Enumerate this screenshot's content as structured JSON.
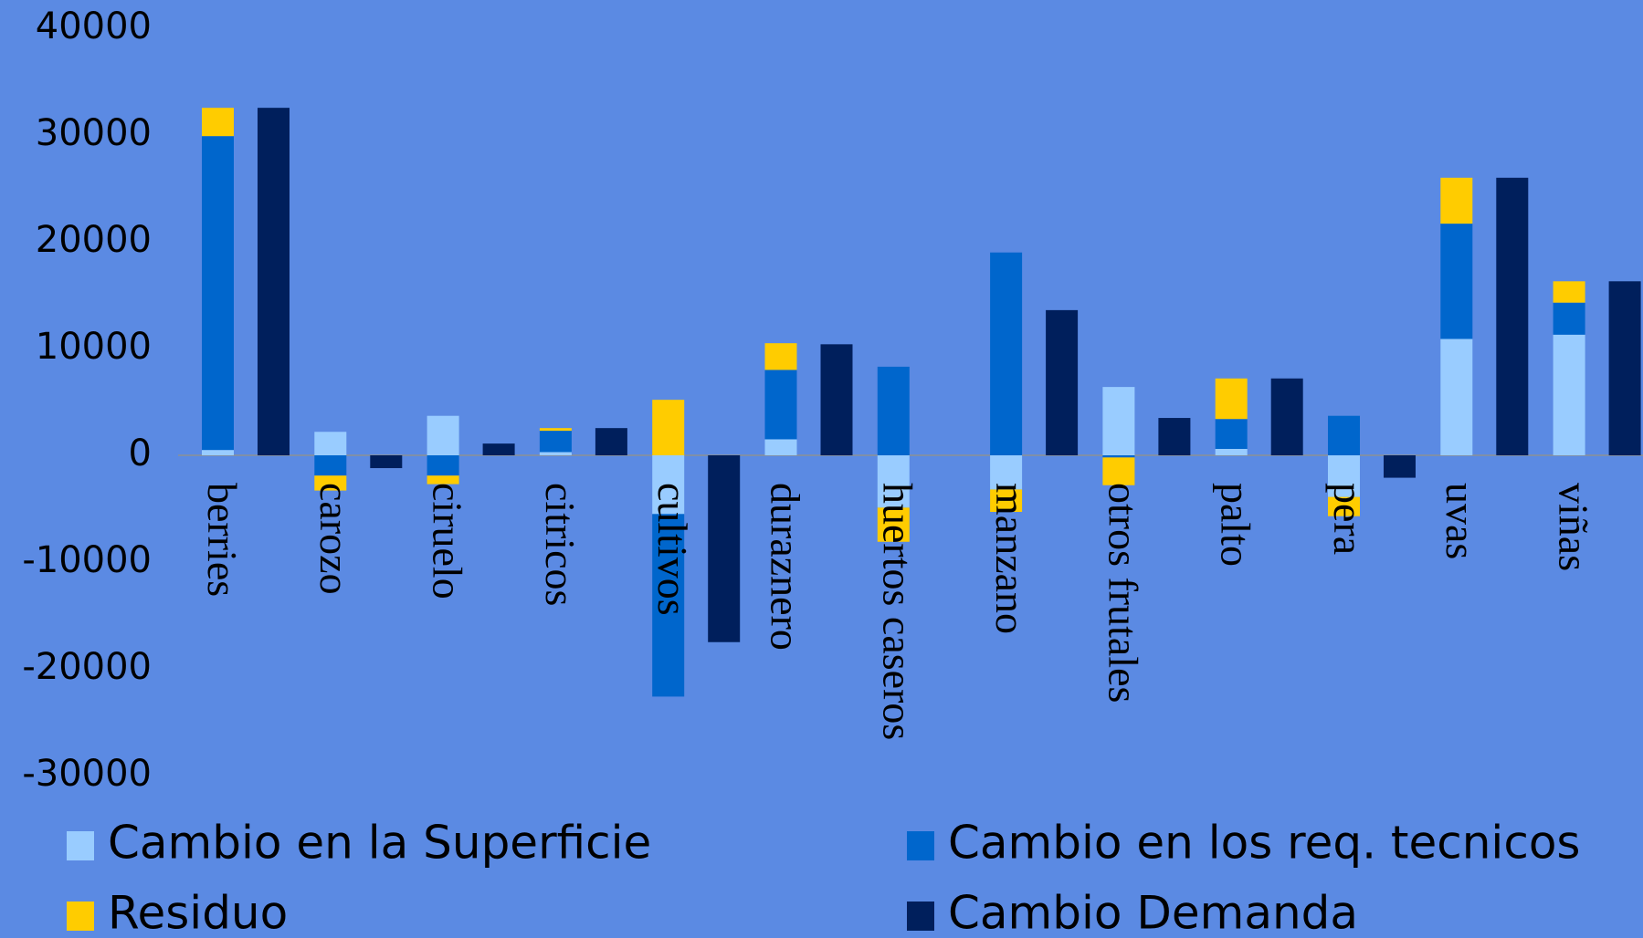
{
  "chart_data": {
    "type": "bar",
    "stacked": true,
    "categories": [
      "berries",
      "carozo",
      "ciruelo",
      "citricos",
      "cultivos",
      "duraznero",
      "huertos caseros",
      "manzano",
      "otros frutales",
      "palto",
      "pera",
      "uvas",
      "viñas"
    ],
    "series": [
      {
        "name": "Cambio en la Superficie",
        "color": "#99ccff",
        "stack": 0,
        "values": [
          500,
          2200,
          3700,
          300,
          -5500,
          1500,
          -4900,
          -3200,
          6400,
          600,
          -3900,
          10900,
          11300
        ]
      },
      {
        "name": "Cambio en los req. tecnicos",
        "color": "#0066cc",
        "stack": 0,
        "values": [
          29400,
          -1900,
          -1900,
          2000,
          -17100,
          6500,
          8300,
          19000,
          -200,
          2800,
          3700,
          10800,
          3000
        ]
      },
      {
        "name": "Residuo",
        "color": "#ffcc00",
        "stack": 0,
        "values": [
          2650,
          -1400,
          -800,
          250,
          5200,
          2500,
          -3200,
          -2100,
          -2600,
          3800,
          -1800,
          4300,
          2000
        ]
      },
      {
        "name": "Cambio Demanda",
        "color": "#001f5c",
        "stack": 1,
        "values": [
          32550,
          -1200,
          1100,
          2550,
          -17500,
          10400,
          0,
          13600,
          3500,
          7200,
          -2100,
          26000,
          16300
        ]
      }
    ],
    "ylim": [
      -30000,
      40000
    ],
    "yticks": [
      -30000,
      -20000,
      -10000,
      0,
      10000,
      20000,
      30000,
      40000
    ]
  }
}
